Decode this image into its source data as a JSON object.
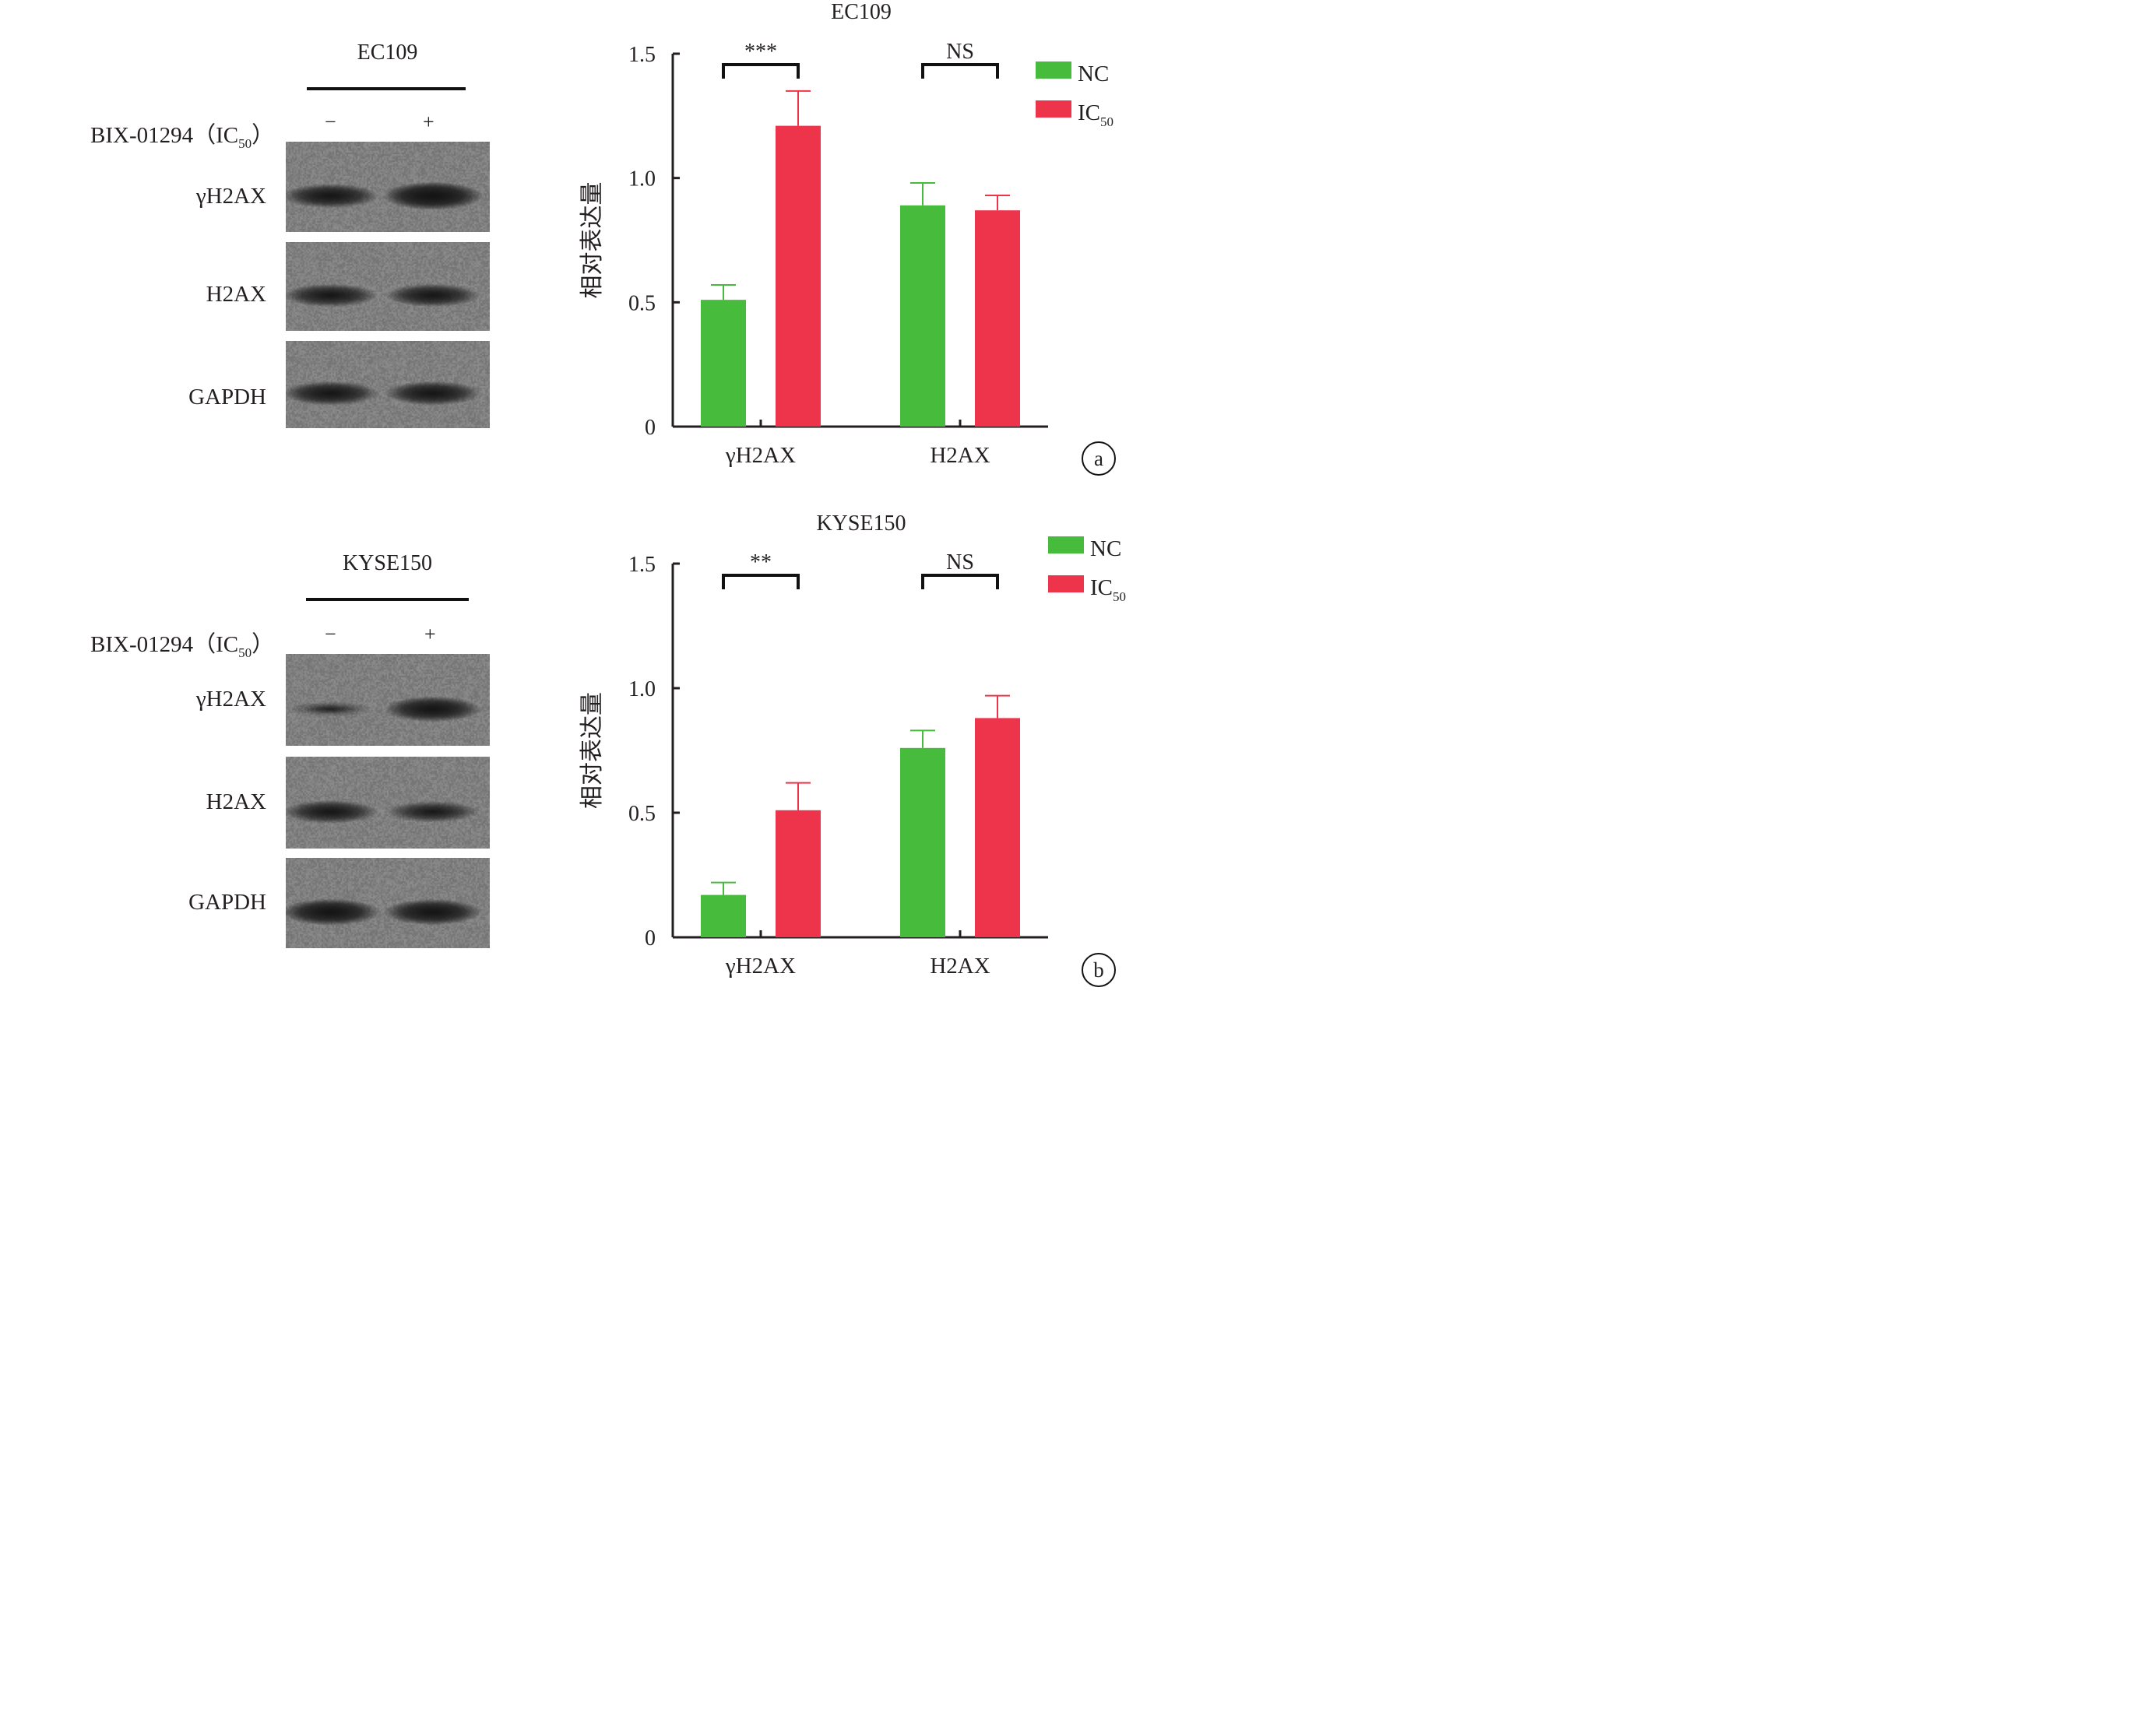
{
  "colors": {
    "nc": "#46bb3c",
    "ic50": "#ee344a",
    "axis": "#231f20",
    "blot_bg": "#8b8b8b",
    "band": "#1a1a1a"
  },
  "panels": [
    {
      "cell_line": "EC109",
      "treatment_prefix": "BIX-01294（IC",
      "treatment_sub": "50",
      "treatment_suffix": "）",
      "lane_signs": [
        "−",
        "+"
      ],
      "blots": [
        {
          "label": "γH2AX",
          "band_intensity": [
            0.78,
            1.0
          ]
        },
        {
          "label": "H2AX",
          "band_intensity": [
            0.72,
            0.72
          ]
        },
        {
          "label": "GAPDH",
          "band_intensity": [
            0.78,
            0.78
          ]
        }
      ],
      "letter": "a"
    },
    {
      "cell_line": "KYSE150",
      "treatment_prefix": "BIX-01294（IC",
      "treatment_sub": "50",
      "treatment_suffix": "）",
      "lane_signs": [
        "−",
        "+"
      ],
      "blots": [
        {
          "label": "γH2AX",
          "band_intensity": [
            0.25,
            0.85
          ]
        },
        {
          "label": "H2AX",
          "band_intensity": [
            0.72,
            0.6
          ]
        },
        {
          "label": "GAPDH",
          "band_intensity": [
            0.92,
            0.88
          ]
        }
      ],
      "letter": "b"
    }
  ],
  "chart_data": [
    {
      "type": "bar",
      "title": "EC109",
      "ylabel": "相对表达量",
      "categories": [
        "γH2AX",
        "H2AX"
      ],
      "ylim": [
        0,
        1.5
      ],
      "yticks": [
        "0",
        "0.5",
        "1.0",
        "1.5"
      ],
      "series": [
        {
          "name": "NC",
          "values": [
            0.51,
            0.89
          ],
          "errors": [
            0.06,
            0.09
          ]
        },
        {
          "name": "IC",
          "name_sub": "50",
          "values": [
            1.21,
            0.87
          ],
          "errors": [
            0.14,
            0.06
          ]
        }
      ],
      "significance": [
        "***",
        "NS"
      ],
      "legend_position": "top-right",
      "grid": false
    },
    {
      "type": "bar",
      "title": "KYSE150",
      "ylabel": "相对表达量",
      "categories": [
        "γH2AX",
        "H2AX"
      ],
      "ylim": [
        0,
        1.5
      ],
      "yticks": [
        "0",
        "0.5",
        "1.0",
        "1.5"
      ],
      "series": [
        {
          "name": "NC",
          "values": [
            0.17,
            0.76
          ],
          "errors": [
            0.05,
            0.07
          ]
        },
        {
          "name": "IC",
          "name_sub": "50",
          "values": [
            0.51,
            0.88
          ],
          "errors": [
            0.11,
            0.09
          ]
        }
      ],
      "significance": [
        "**",
        "NS"
      ],
      "legend_position": "top-right",
      "grid": false
    }
  ]
}
